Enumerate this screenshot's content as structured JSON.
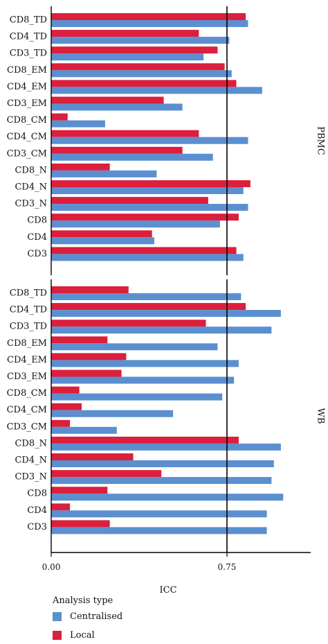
{
  "chart_data": {
    "type": "bar",
    "orientation": "horizontal",
    "xlabel": "ICC",
    "xlim": [
      0,
      1.12
    ],
    "x_ticks": [
      "0.00",
      "0.75"
    ],
    "reference_line": 0.75,
    "panels": [
      {
        "name": "PBMC",
        "categories": [
          "CD8_TD",
          "CD4_TD",
          "CD3_TD",
          "CD8_EM",
          "CD4_EM",
          "CD3_EM",
          "CD8_CM",
          "CD4_CM",
          "CD3_CM",
          "CD8_N",
          "CD4_N",
          "CD3_N",
          "CD8",
          "CD4",
          "CD3"
        ],
        "series": [
          {
            "name": "Local",
            "values": [
              0.83,
              0.63,
              0.71,
              0.74,
              0.79,
              0.48,
              0.07,
              0.63,
              0.56,
              0.25,
              0.85,
              0.67,
              0.8,
              0.43,
              0.79
            ]
          },
          {
            "name": "Centralised",
            "values": [
              0.84,
              0.76,
              0.65,
              0.77,
              0.9,
              0.56,
              0.23,
              0.84,
              0.69,
              0.45,
              0.82,
              0.84,
              0.72,
              0.44,
              0.82
            ]
          }
        ]
      },
      {
        "name": "WB",
        "categories": [
          "CD8_TD",
          "CD4_TD",
          "CD3_TD",
          "CD8_EM",
          "CD4_EM",
          "CD3_EM",
          "CD8_CM",
          "CD4_CM",
          "CD3_CM",
          "CD8_N",
          "CD4_N",
          "CD3_N",
          "CD8",
          "CD4",
          "CD3"
        ],
        "series": [
          {
            "name": "Local",
            "values": [
              0.33,
              0.83,
              0.66,
              0.24,
              0.32,
              0.3,
              0.12,
              0.13,
              0.08,
              0.8,
              0.35,
              0.47,
              0.24,
              0.08,
              0.25
            ]
          },
          {
            "name": "Centralised",
            "values": [
              0.81,
              0.98,
              0.94,
              0.71,
              0.8,
              0.78,
              0.73,
              0.52,
              0.28,
              0.98,
              0.95,
              0.94,
              0.99,
              0.92,
              0.92
            ]
          }
        ]
      }
    ],
    "legend": {
      "title": "Analysis type",
      "placement": "bottom-left"
    },
    "colors": {
      "Local": "#dc1f3c",
      "Centralised": "#5b8fd0"
    },
    "grid": false
  }
}
